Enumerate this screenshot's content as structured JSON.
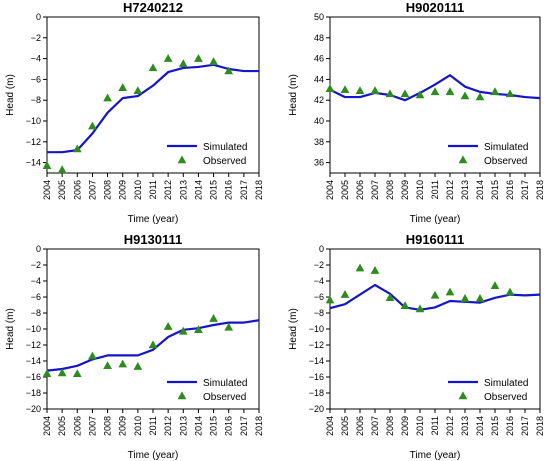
{
  "chart_data": [
    {
      "type": "line",
      "title": "H7240212",
      "xlabel": "Time (year)",
      "ylabel": "Head (m)",
      "ylim": [
        -15,
        0
      ],
      "yticks": [
        0,
        -2,
        -4,
        -6,
        -8,
        -10,
        -12,
        -14
      ],
      "xticks": [
        "2004",
        "2005",
        "2006",
        "2007",
        "2008",
        "2009",
        "2010",
        "2011",
        "2012",
        "2013",
        "2014",
        "2015",
        "2016",
        "2017",
        "2018"
      ],
      "xlim": [
        2004,
        2018
      ],
      "legend_position": "bottom-right",
      "simulated_color": "#1515c8",
      "observed_color": "#2e8b1e",
      "series": [
        {
          "name": "Simulated",
          "x": [
            2004,
            2005,
            2006,
            2007,
            2008,
            2009,
            2010,
            2011,
            2012,
            2013,
            2014,
            2015,
            2016,
            2017,
            2018
          ],
          "y": [
            -13,
            -13,
            -12.8,
            -11.2,
            -9.2,
            -7.8,
            -7.6,
            -6.6,
            -5.3,
            -4.9,
            -4.8,
            -4.6,
            -5.0,
            -5.2,
            -5.2
          ]
        },
        {
          "name": "Observed",
          "x": [
            2004,
            2005,
            2006,
            2007,
            2008,
            2009,
            2010,
            2011,
            2012,
            2013,
            2014,
            2015,
            2016
          ],
          "y": [
            -14.3,
            -14.7,
            -12.7,
            -10.5,
            -7.8,
            -6.8,
            -7.1,
            -4.9,
            -4.0,
            -4.5,
            -4.0,
            -4.3,
            -5.2
          ]
        }
      ]
    },
    {
      "type": "line",
      "title": "H9020111",
      "xlabel": "Time (year)",
      "ylabel": "Head (m)",
      "ylim": [
        35,
        50
      ],
      "yticks": [
        50,
        48,
        46,
        44,
        42,
        40,
        38,
        36
      ],
      "xticks": [
        "2004",
        "2005",
        "2006",
        "2007",
        "2008",
        "2009",
        "2010",
        "2011",
        "2012",
        "2013",
        "2014",
        "2015",
        "2016",
        "2017",
        "2018"
      ],
      "xlim": [
        2004,
        2018
      ],
      "legend_position": "bottom-right",
      "simulated_color": "#1515c8",
      "observed_color": "#2e8b1e",
      "series": [
        {
          "name": "Simulated",
          "x": [
            2004,
            2005,
            2006,
            2007,
            2008,
            2009,
            2010,
            2011,
            2012,
            2013,
            2014,
            2015,
            2016,
            2017,
            2018
          ],
          "y": [
            43.0,
            42.3,
            42.3,
            42.7,
            42.5,
            42.0,
            42.7,
            43.5,
            44.4,
            43.3,
            42.8,
            42.6,
            42.5,
            42.3,
            42.2
          ]
        },
        {
          "name": "Observed",
          "x": [
            2004,
            2005,
            2006,
            2007,
            2008,
            2009,
            2010,
            2011,
            2012,
            2013,
            2014,
            2015,
            2016
          ],
          "y": [
            43.1,
            43.0,
            42.9,
            42.9,
            42.6,
            42.6,
            42.5,
            42.8,
            42.8,
            42.4,
            42.3,
            42.8,
            42.6
          ]
        }
      ]
    },
    {
      "type": "line",
      "title": "H9130111",
      "xlabel": "Time (year)",
      "ylabel": "Head (m)",
      "ylim": [
        -20,
        0
      ],
      "yticks": [
        0,
        -2,
        -4,
        -6,
        -8,
        -10,
        -12,
        -14,
        -16,
        -18,
        -20
      ],
      "xticks": [
        "2004",
        "2005",
        "2006",
        "2007",
        "2008",
        "2009",
        "2010",
        "2011",
        "2012",
        "2013",
        "2014",
        "2015",
        "2016",
        "2017",
        "2018"
      ],
      "xlim": [
        2004,
        2018
      ],
      "legend_position": "bottom-right",
      "simulated_color": "#1515c8",
      "observed_color": "#2e8b1e",
      "series": [
        {
          "name": "Simulated",
          "x": [
            2004,
            2005,
            2006,
            2007,
            2008,
            2009,
            2010,
            2011,
            2012,
            2013,
            2014,
            2015,
            2016,
            2017,
            2018
          ],
          "y": [
            -15.2,
            -15.0,
            -14.6,
            -13.8,
            -13.3,
            -13.3,
            -13.3,
            -12.6,
            -11.0,
            -10.1,
            -9.9,
            -9.5,
            -9.2,
            -9.2,
            -8.9
          ]
        },
        {
          "name": "Observed",
          "x": [
            2004,
            2005,
            2006,
            2007,
            2008,
            2009,
            2010,
            2011,
            2012,
            2013,
            2014,
            2015,
            2016
          ],
          "y": [
            -15.6,
            -15.5,
            -15.6,
            -13.4,
            -14.6,
            -14.4,
            -14.7,
            -12.0,
            -9.7,
            -10.3,
            -10.1,
            -8.7,
            -9.8
          ]
        }
      ]
    },
    {
      "type": "line",
      "title": "H9160111",
      "xlabel": "Time (year)",
      "ylabel": "Head (m)",
      "ylim": [
        -20,
        0
      ],
      "yticks": [
        0,
        -2,
        -4,
        -6,
        -8,
        -10,
        -12,
        -14,
        -16,
        -18,
        -20
      ],
      "xticks": [
        "2004",
        "2005",
        "2006",
        "2007",
        "2008",
        "2009",
        "2010",
        "2011",
        "2012",
        "2013",
        "2014",
        "2015",
        "2016",
        "2017",
        "2018"
      ],
      "xlim": [
        2004,
        2018
      ],
      "legend_position": "bottom-right",
      "simulated_color": "#1515c8",
      "observed_color": "#2e8b1e",
      "series": [
        {
          "name": "Simulated",
          "x": [
            2004,
            2005,
            2006,
            2007,
            2008,
            2009,
            2010,
            2011,
            2012,
            2013,
            2014,
            2015,
            2016,
            2017,
            2018
          ],
          "y": [
            -7.4,
            -6.9,
            -5.7,
            -4.5,
            -5.6,
            -7.3,
            -7.6,
            -7.3,
            -6.5,
            -6.6,
            -6.7,
            -6.1,
            -5.7,
            -5.8,
            -5.7
          ]
        },
        {
          "name": "Observed",
          "x": [
            2004,
            2005,
            2006,
            2007,
            2008,
            2009,
            2010,
            2011,
            2012,
            2013,
            2014,
            2015,
            2016
          ],
          "y": [
            -6.4,
            -5.7,
            -2.4,
            -2.7,
            -6.1,
            -7.1,
            -7.5,
            -5.8,
            -5.4,
            -6.2,
            -6.2,
            -4.6,
            -5.4
          ]
        }
      ]
    }
  ]
}
